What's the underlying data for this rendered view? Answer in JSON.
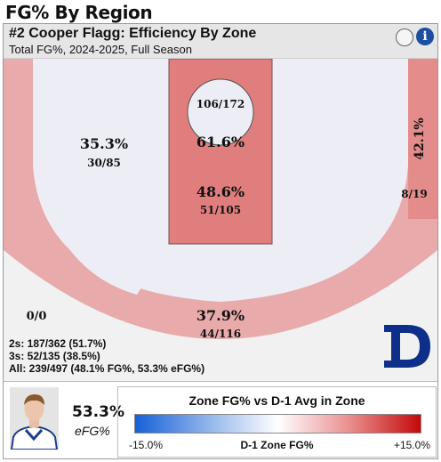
{
  "page_title": "FG% By Region",
  "header": {
    "player_title": "#2 Cooper Flagg: Efficiency By Zone",
    "subtitle": "Total FG%, 2024-2025, Full Season",
    "info_label": "i"
  },
  "zones": {
    "left_mid": {
      "pct": "35.3%",
      "made_att": "30/85"
    },
    "paint_top": {
      "made_att": "106/172"
    },
    "rim": {
      "pct": "61.6%"
    },
    "paint": {
      "pct": "48.6%",
      "made_att": "51/105"
    },
    "right_corner": {
      "pct": "42.1%",
      "made_att": "8/19"
    },
    "left_corner": {
      "value": "0/0"
    },
    "three": {
      "pct": "37.9%",
      "made_att": "44/116"
    }
  },
  "colors": {
    "paint": "#e07e7e",
    "rim_area": "#f3b1b1",
    "left_mid": "#eaa7a7",
    "right_corner": "#e48c8c",
    "three": "#e8aaaa",
    "inner": "#ecedf5",
    "background": "#f1f1f1",
    "logo": "#0d2f8a"
  },
  "totals": {
    "twos": "2s: 187/362 (51.7%)",
    "threes": "3s: 52/135 (38.5%)",
    "all": "All: 239/497 (48.1% FG%, 53.3% eFG%)"
  },
  "footer": {
    "efg_value": "53.3%",
    "efg_label": "eFG%",
    "legend_title": "Zone FG% vs D-1 Avg in Zone",
    "legend_min": "-15.0%",
    "legend_mid": "D-1 Zone FG%",
    "legend_max": "+15.0%"
  }
}
